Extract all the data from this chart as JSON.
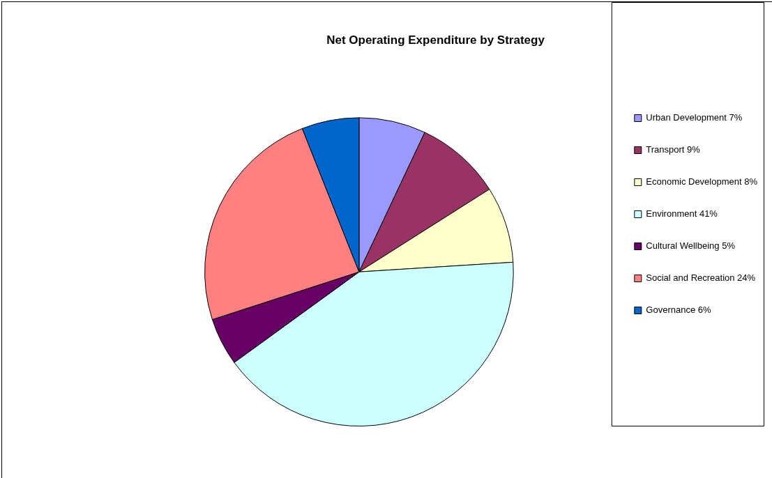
{
  "chart_data": {
    "type": "pie",
    "title": "Net Operating Expenditure by Strategy",
    "categories": [
      "Urban Development 7%",
      "Transport 9%",
      "Economic Development 8%",
      "Environment 41%",
      "Cultural Wellbeing 5%",
      "Social and Recreation 24%",
      "Governance 6%"
    ],
    "values": [
      7,
      9,
      8,
      41,
      5,
      24,
      6
    ],
    "colors": [
      "#9999ff",
      "#993366",
      "#ffffcc",
      "#ccffff",
      "#660066",
      "#ff8080",
      "#0066cc"
    ],
    "legend": "right"
  }
}
